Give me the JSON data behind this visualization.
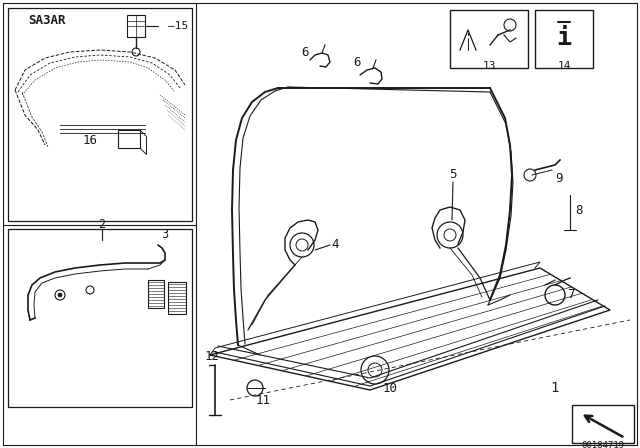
{
  "bg_color": "#ffffff",
  "line_color": "#1a1a1a",
  "fig_width": 6.4,
  "fig_height": 4.48,
  "dpi": 100,
  "part_code": "00184719",
  "label_sa3ar": "SA3AR"
}
